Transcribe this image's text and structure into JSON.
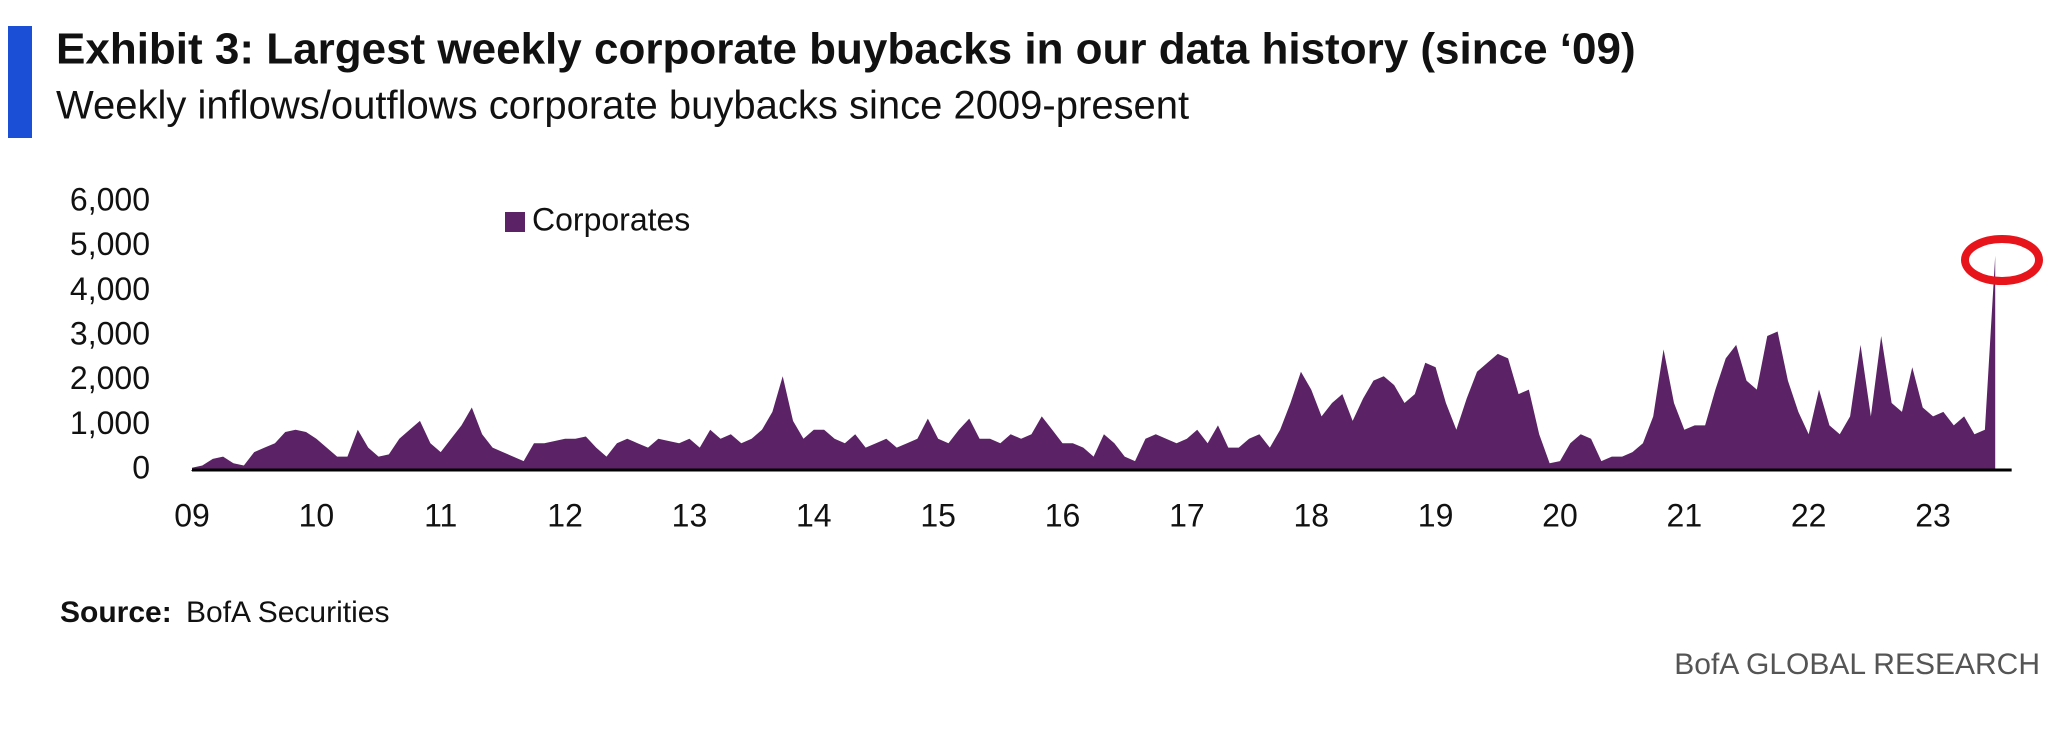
{
  "chart_data": {
    "type": "area",
    "title": "Exhibit 3: Largest weekly corporate buybacks in our data history (since ‘09)",
    "subtitle": "Weekly inflows/outflows corporate buybacks since 2009-present",
    "source": {
      "label": "Source:",
      "text": "BofA Securities"
    },
    "brand": "BofA GLOBAL RESEARCH",
    "legend": "top-left",
    "xlim": [
      2009,
      2023.6
    ],
    "ylim": [
      0,
      6000
    ],
    "yticks": [
      0,
      {
        "value": 1000,
        "label": "1,000"
      },
      {
        "value": 2000,
        "label": "2,000"
      },
      {
        "value": 3000,
        "label": "3,000"
      },
      {
        "value": 4000,
        "label": "4,000"
      },
      {
        "value": 5000,
        "label": "5,000"
      },
      {
        "value": 6000,
        "label": "6,000"
      }
    ],
    "xticks": [
      {
        "value": 2009,
        "label": "09"
      },
      {
        "value": 2010,
        "label": "10"
      },
      {
        "value": 2011,
        "label": "11"
      },
      {
        "value": 2012,
        "label": "12"
      },
      {
        "value": 2013,
        "label": "13"
      },
      {
        "value": 2014,
        "label": "14"
      },
      {
        "value": 2015,
        "label": "15"
      },
      {
        "value": 2016,
        "label": "16"
      },
      {
        "value": 2017,
        "label": "17"
      },
      {
        "value": 2018,
        "label": "18"
      },
      {
        "value": 2019,
        "label": "19"
      },
      {
        "value": 2020,
        "label": "20"
      },
      {
        "value": 2021,
        "label": "21"
      },
      {
        "value": 2022,
        "label": "22"
      },
      {
        "value": 2023,
        "label": "23"
      }
    ],
    "x": [
      2009,
      2009.083,
      2009.167,
      2009.25,
      2009.333,
      2009.417,
      2009.5,
      2009.583,
      2009.667,
      2009.75,
      2009.833,
      2009.917,
      2010,
      2010.083,
      2010.167,
      2010.25,
      2010.333,
      2010.417,
      2010.5,
      2010.583,
      2010.667,
      2010.75,
      2010.833,
      2010.917,
      2011,
      2011.083,
      2011.167,
      2011.25,
      2011.333,
      2011.417,
      2011.5,
      2011.583,
      2011.667,
      2011.75,
      2011.833,
      2011.917,
      2012,
      2012.083,
      2012.167,
      2012.25,
      2012.333,
      2012.417,
      2012.5,
      2012.583,
      2012.667,
      2012.75,
      2012.833,
      2012.917,
      2013,
      2013.083,
      2013.167,
      2013.25,
      2013.333,
      2013.417,
      2013.5,
      2013.583,
      2013.667,
      2013.75,
      2013.833,
      2013.917,
      2014,
      2014.083,
      2014.167,
      2014.25,
      2014.333,
      2014.417,
      2014.5,
      2014.583,
      2014.667,
      2014.75,
      2014.833,
      2014.917,
      2015,
      2015.083,
      2015.167,
      2015.25,
      2015.333,
      2015.417,
      2015.5,
      2015.583,
      2015.667,
      2015.75,
      2015.833,
      2015.917,
      2016,
      2016.083,
      2016.167,
      2016.25,
      2016.333,
      2016.417,
      2016.5,
      2016.583,
      2016.667,
      2016.75,
      2016.833,
      2016.917,
      2017,
      2017.083,
      2017.167,
      2017.25,
      2017.333,
      2017.417,
      2017.5,
      2017.583,
      2017.667,
      2017.75,
      2017.833,
      2017.917,
      2018,
      2018.083,
      2018.167,
      2018.25,
      2018.333,
      2018.417,
      2018.5,
      2018.583,
      2018.667,
      2018.75,
      2018.833,
      2018.917,
      2019,
      2019.083,
      2019.167,
      2019.25,
      2019.333,
      2019.417,
      2019.5,
      2019.583,
      2019.667,
      2019.75,
      2019.833,
      2019.917,
      2020,
      2020.083,
      2020.167,
      2020.25,
      2020.333,
      2020.417,
      2020.5,
      2020.583,
      2020.667,
      2020.75,
      2020.833,
      2020.917,
      2021,
      2021.083,
      2021.167,
      2021.25,
      2021.333,
      2021.417,
      2021.5,
      2021.583,
      2021.667,
      2021.75,
      2021.833,
      2021.917,
      2022,
      2022.083,
      2022.167,
      2022.25,
      2022.333,
      2022.417,
      2022.5,
      2022.583,
      2022.667,
      2022.75,
      2022.833,
      2022.917,
      2023,
      2023.083,
      2023.167,
      2023.25,
      2023.333,
      2023.417,
      2023.5
    ],
    "series": [
      {
        "name": "Corporates",
        "color": "#5b2266",
        "values": [
          50,
          100,
          250,
          300,
          150,
          100,
          400,
          500,
          600,
          850,
          900,
          850,
          700,
          500,
          300,
          300,
          900,
          500,
          300,
          350,
          700,
          900,
          1100,
          600,
          400,
          700,
          1000,
          1400,
          800,
          500,
          400,
          300,
          200,
          600,
          600,
          650,
          700,
          700,
          750,
          500,
          300,
          600,
          700,
          600,
          500,
          700,
          650,
          600,
          700,
          500,
          900,
          700,
          800,
          600,
          700,
          900,
          1300,
          2100,
          1100,
          700,
          900,
          900,
          700,
          600,
          800,
          500,
          600,
          700,
          500,
          600,
          700,
          1150,
          700,
          600,
          900,
          1150,
          700,
          700,
          600,
          800,
          700,
          800,
          1200,
          900,
          600,
          600,
          500,
          300,
          800,
          600,
          300,
          200,
          700,
          800,
          700,
          600,
          700,
          900,
          600,
          1000,
          500,
          500,
          700,
          800,
          500,
          900,
          1500,
          2200,
          1800,
          1200,
          1500,
          1700,
          1100,
          1600,
          2000,
          2100,
          1900,
          1500,
          1700,
          2400,
          2300,
          1500,
          900,
          1600,
          2200,
          2400,
          2600,
          2500,
          1700,
          1800,
          800,
          150,
          200,
          600,
          800,
          700,
          200,
          300,
          300,
          400,
          600,
          1200,
          2700,
          1500,
          900,
          1000,
          1000,
          1800,
          2500,
          2800,
          2000,
          1800,
          3000,
          3100,
          2000,
          1300,
          800,
          1800,
          1000,
          800,
          1200,
          2800,
          1200,
          3000,
          1500,
          1300,
          2300,
          1400,
          1200,
          1300,
          1000,
          1200,
          800,
          900,
          4800
        ]
      }
    ]
  }
}
